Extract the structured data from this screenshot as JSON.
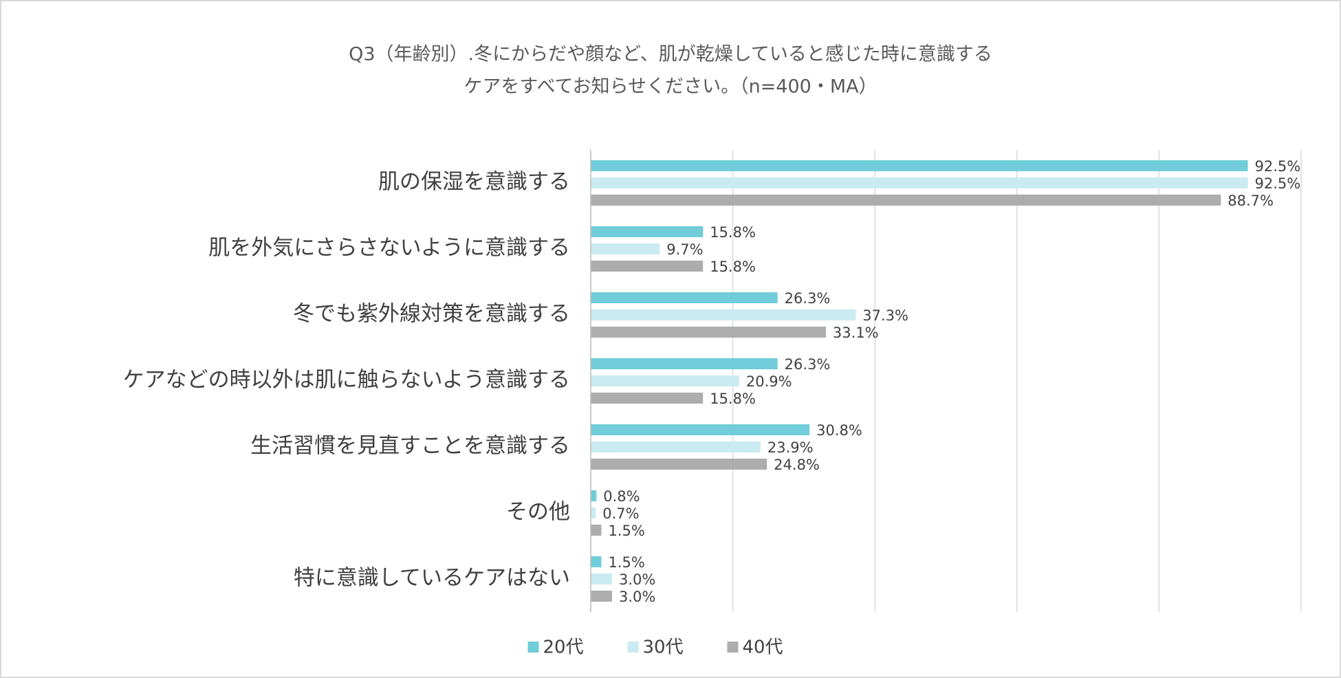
{
  "chart_data": {
    "type": "hbar",
    "title": [
      "Q3（年齢別）.冬にからだや顔など、肌が乾燥していると感じた時に意識する",
      "ケアをすべてお知らせください。（n=400・MA）"
    ],
    "categories": [
      "肌の保湿を意識する",
      "肌を外気にさらさないように意識する",
      "冬でも紫外線対策を意識する",
      "ケアなどの時以外は肌に触らないよう意識する",
      "生活習慣を見直すことを意識する",
      "その他",
      "特に意識しているケアはない"
    ],
    "series": [
      {
        "name": "20代",
        "color": "#70cdd9",
        "values": [
          92.5,
          15.8,
          26.3,
          26.3,
          30.8,
          0.8,
          1.5
        ],
        "value_labels": [
          "92.5%",
          "15.8%",
          "26.3%",
          "26.3%",
          "30.8%",
          "0.8%",
          "1.5%"
        ]
      },
      {
        "name": "30代",
        "color": "#c9ebf1",
        "values": [
          92.5,
          9.7,
          37.3,
          20.9,
          23.9,
          0.7,
          3.0
        ],
        "value_labels": [
          "92.5%",
          "9.7%",
          "37.3%",
          "20.9%",
          "23.9%",
          "0.7%",
          "3.0%"
        ]
      },
      {
        "name": "40代",
        "color": "#adadad",
        "values": [
          88.7,
          15.8,
          33.1,
          15.8,
          24.8,
          1.5,
          3.0
        ],
        "value_labels": [
          "88.7%",
          "15.8%",
          "33.1%",
          "15.8%",
          "24.8%",
          "1.5%",
          "3.0%"
        ]
      }
    ],
    "xlim": [
      0,
      100
    ],
    "xticks": [
      0,
      20,
      40,
      60,
      80,
      100
    ],
    "grid": true,
    "legend": "bottom"
  }
}
